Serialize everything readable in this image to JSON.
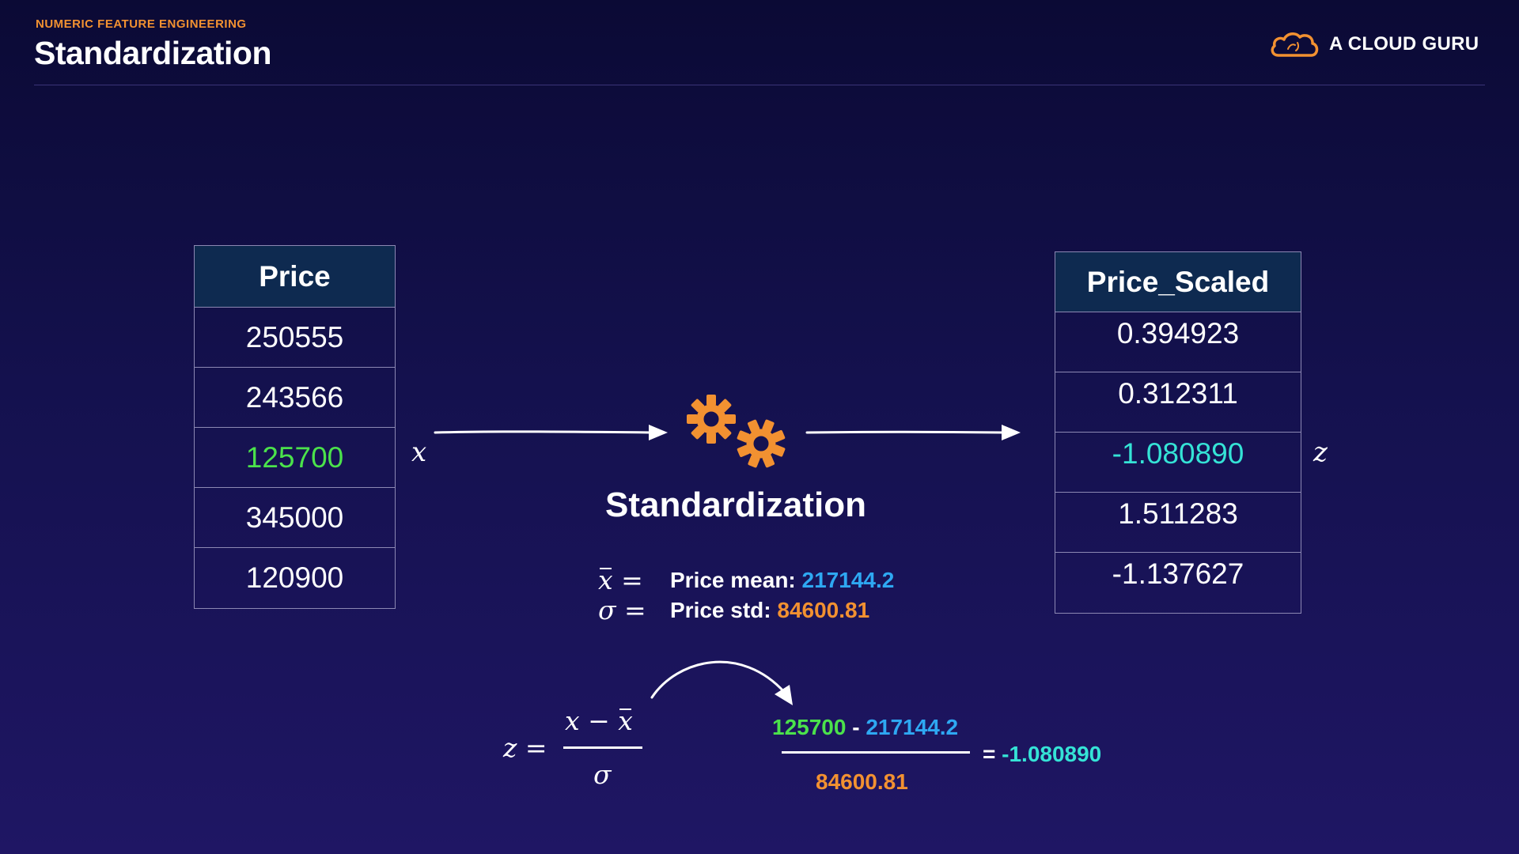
{
  "header": {
    "section_label": "NUMERIC FEATURE ENGINEERING",
    "title": "Standardization",
    "brand": "A CLOUD GURU"
  },
  "input_table": {
    "header": "Price",
    "rows": [
      "250555",
      "243566",
      "125700",
      "345000",
      "120900"
    ],
    "highlight_index": 2
  },
  "output_table": {
    "header": "Price_Scaled",
    "rows": [
      "0.394923",
      "0.312311",
      "-1.080890",
      "1.511283",
      "-1.137627"
    ],
    "highlight_index": 2
  },
  "variables": {
    "x": "x",
    "z": "z"
  },
  "process": {
    "label": "Standardization",
    "icon": "gears-icon"
  },
  "stats": {
    "mean_label": "Price mean:",
    "mean_value": "217144.2",
    "std_label": "Price std:",
    "std_value": "84600.81"
  },
  "formula": {
    "z": "z",
    "equals": "=",
    "x": "x",
    "minus": "−",
    "x_bar": "x",
    "sigma": "σ"
  },
  "calculation": {
    "x_value": "125700",
    "minus": "-",
    "mean_value": "217144.2",
    "std_value": "84600.81",
    "equals": "=",
    "result": "-1.080890"
  },
  "colors": {
    "accent_orange": "#f29131",
    "highlight_green": "#4be24b",
    "highlight_cyan": "#35e3d6",
    "mean_blue": "#2ea8f2",
    "table_header_bg": "#0e2a50"
  }
}
